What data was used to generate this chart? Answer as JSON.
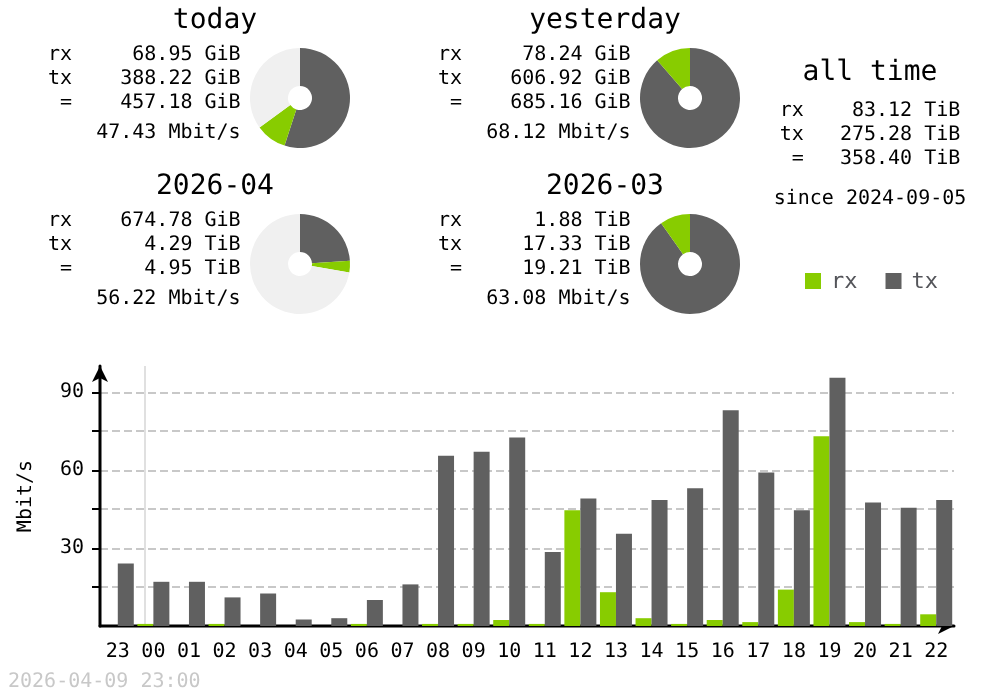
{
  "chart_data": [
    {
      "type": "donut",
      "title": "today",
      "categories": [
        null,
        null,
        null
      ],
      "values": [
        55,
        10,
        35
      ],
      "colors": [
        "#606060",
        "#88cc00",
        "#f0f0f0"
      ],
      "annotations": [
        "rx     68.95 GiB",
        "tx    388.22 GiB",
        " =    457.18 GiB",
        "    47.43 Mbit/s"
      ]
    },
    {
      "type": "donut",
      "title": "yesterday",
      "categories": [
        null,
        null
      ],
      "values": [
        88.6,
        11.4
      ],
      "colors": [
        "#606060",
        "#88cc00"
      ],
      "annotations": [
        "rx     78.24 GiB",
        "tx    606.92 GiB",
        " =    685.16 GiB",
        "    68.12 Mbit/s"
      ]
    },
    {
      "type": "donut",
      "title": "2026-04",
      "categories": [
        null,
        null,
        null
      ],
      "values": [
        24,
        3.7,
        72.3
      ],
      "colors": [
        "#606060",
        "#88cc00",
        "#f0f0f0"
      ],
      "annotations": [
        "rx    674.78 GiB",
        "tx      4.29 TiB",
        " =      4.95 TiB",
        "    56.22 Mbit/s"
      ]
    },
    {
      "type": "donut",
      "title": "2026-03",
      "categories": [
        null,
        null
      ],
      "values": [
        90.2,
        9.8
      ],
      "colors": [
        "#606060",
        "#88cc00"
      ],
      "annotations": [
        "rx      1.88 TiB",
        "tx     17.33 TiB",
        " =     19.21 TiB",
        "    63.08 Mbit/s"
      ]
    },
    {
      "type": "other",
      "title": "all time",
      "annotations": [
        "rx    83.12 TiB",
        "tx   275.28 TiB",
        " =   358.40 TiB",
        "since 2024-09-05"
      ]
    },
    {
      "type": "bar",
      "ylabel": "Mbit/s",
      "categories": [
        "23",
        "00",
        "01",
        "02",
        "03",
        "04",
        "05",
        "06",
        "07",
        "08",
        "09",
        "10",
        "11",
        "12",
        "13",
        "14",
        "15",
        "16",
        "17",
        "18",
        "19",
        "20",
        "21",
        "22"
      ],
      "series": [
        {
          "name": "rx",
          "color": "#88cc00",
          "values": [
            0,
            0.8,
            0,
            0.8,
            0,
            0,
            0,
            0.8,
            0,
            0.8,
            0.8,
            2.3,
            0.8,
            44.5,
            13,
            3,
            0.8,
            2.3,
            1.5,
            14,
            73,
            1.5,
            0.8,
            4.5
          ]
        },
        {
          "name": "tx",
          "color": "#606060",
          "values": [
            24,
            17,
            17,
            11,
            12.5,
            2.5,
            3,
            10,
            16,
            65.5,
            67,
            72.5,
            28.5,
            49,
            35.5,
            48.5,
            53,
            83,
            59,
            44.5,
            95.5,
            47.5,
            45.5,
            48.5
          ]
        }
      ],
      "ylim": [
        0,
        100
      ],
      "yticks": [
        {
          "value": 15,
          "label": null
        },
        30,
        {
          "value": 45,
          "label": null
        },
        60,
        {
          "value": 75,
          "label": null
        },
        90
      ],
      "grid": "y",
      "legend": "top right",
      "ref_lines": [
        {
          "axis": "x",
          "value": "00",
          "color": "#e0e0e0"
        }
      ],
      "annotations": [
        "2026-04-09 23:00"
      ]
    }
  ]
}
